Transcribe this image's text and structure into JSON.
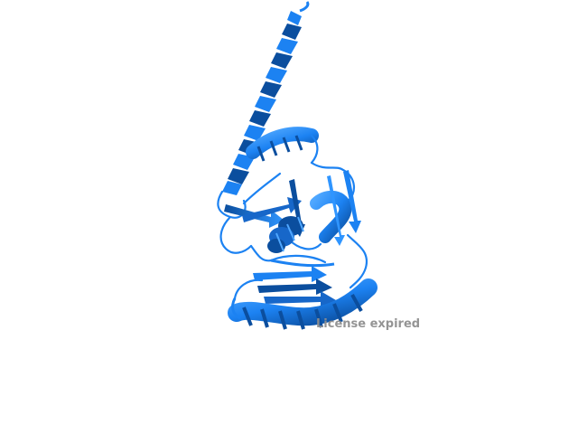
{
  "viewer": {
    "watermark_text": "License expired",
    "background": "#ffffff"
  },
  "structure": {
    "representation": "cartoon",
    "color_primary": "#1c82f2",
    "color_shadow": "#0b4e9e",
    "color_highlight": "#4fa7ff"
  }
}
